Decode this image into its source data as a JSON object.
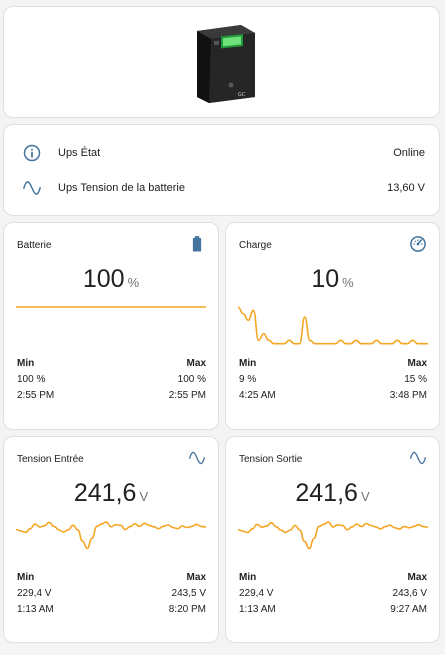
{
  "hero": {
    "image": "ups-device-image"
  },
  "entities": [
    {
      "icon": "info-icon",
      "name": "Ups État",
      "value": "Online"
    },
    {
      "icon": "sine-wave-icon",
      "name": "Ups Tension de la batterie",
      "value": "13,60 V"
    }
  ],
  "sensors": [
    {
      "title": "Batterie",
      "icon": "battery-icon",
      "value": "100",
      "unit": "%",
      "min_label": "Min",
      "max_label": "Max",
      "min_value": "100 %",
      "max_value": "100 %",
      "min_time": "2:55 PM",
      "max_time": "2:55 PM",
      "series": [
        100,
        100,
        100,
        100,
        100,
        100,
        100,
        100,
        100,
        100
      ],
      "range": [
        0,
        100
      ]
    },
    {
      "title": "Charge",
      "icon": "gauge-icon",
      "value": "10",
      "unit": "%",
      "min_label": "Min",
      "max_label": "Max",
      "min_value": "9 %",
      "max_value": "15 %",
      "min_time": "4:25 AM",
      "max_time": "3:48 PM",
      "series": [
        15,
        14,
        13,
        14.5,
        10,
        11,
        10,
        9.5,
        9.5,
        9.5,
        10,
        9.5,
        9.5,
        13.5,
        10,
        9.5,
        9.5,
        9.5,
        9.5,
        9.5,
        10,
        9.5,
        9.5,
        10,
        9.5,
        9.5,
        9.5,
        10,
        9.5,
        9.5,
        9.5,
        10,
        9.5,
        9.5,
        10,
        9.5,
        9.5,
        9.5
      ],
      "range": [
        9,
        15
      ]
    },
    {
      "title": "Tension Entrée",
      "icon": "sine-wave-icon",
      "value": "241,6",
      "unit": "V",
      "min_label": "Min",
      "max_label": "Max",
      "min_value": "229,4 V",
      "max_value": "243,5 V",
      "min_time": "1:13 AM",
      "max_time": "8:20 PM",
      "series": [
        240.5,
        240,
        239.5,
        240.8,
        242.4,
        241.4,
        241.8,
        243,
        241.6,
        240.4,
        239.6,
        240.4,
        242,
        240.4,
        236.4,
        233.8,
        237.4,
        241.6,
        242.4,
        243.2,
        241.5,
        242.2,
        242,
        240.5,
        241.5,
        242.5,
        241.6,
        242.7,
        242,
        241.5,
        240.8,
        241.6,
        242.1,
        241.2,
        240.8,
        241.7,
        241.2,
        241.6,
        242.3,
        241.6,
        241.4
      ],
      "range": [
        229.4,
        243.5
      ]
    },
    {
      "title": "Tension Sortie",
      "icon": "sine-wave-icon",
      "value": "241,6",
      "unit": "V",
      "min_label": "Min",
      "max_label": "Max",
      "min_value": "229,4 V",
      "max_value": "243,6 V",
      "min_time": "1:13 AM",
      "max_time": "9:27 AM",
      "series": [
        240.5,
        240,
        239.5,
        240.8,
        242.4,
        241.4,
        241.8,
        243,
        241.6,
        240.4,
        239.6,
        240.4,
        242,
        240.4,
        236.4,
        233.8,
        237.4,
        241.6,
        242.4,
        243.2,
        241.5,
        242.2,
        242,
        240.5,
        241.5,
        242.5,
        241.6,
        242.7,
        242,
        241.5,
        240.8,
        241.6,
        242.1,
        241.2,
        240.8,
        241.7,
        241.2,
        241.6,
        242.3,
        241.6,
        241.4
      ],
      "range": [
        229.4,
        243.6
      ]
    }
  ],
  "colors": {
    "accent": "#44739e",
    "graph": "#f5a623"
  }
}
